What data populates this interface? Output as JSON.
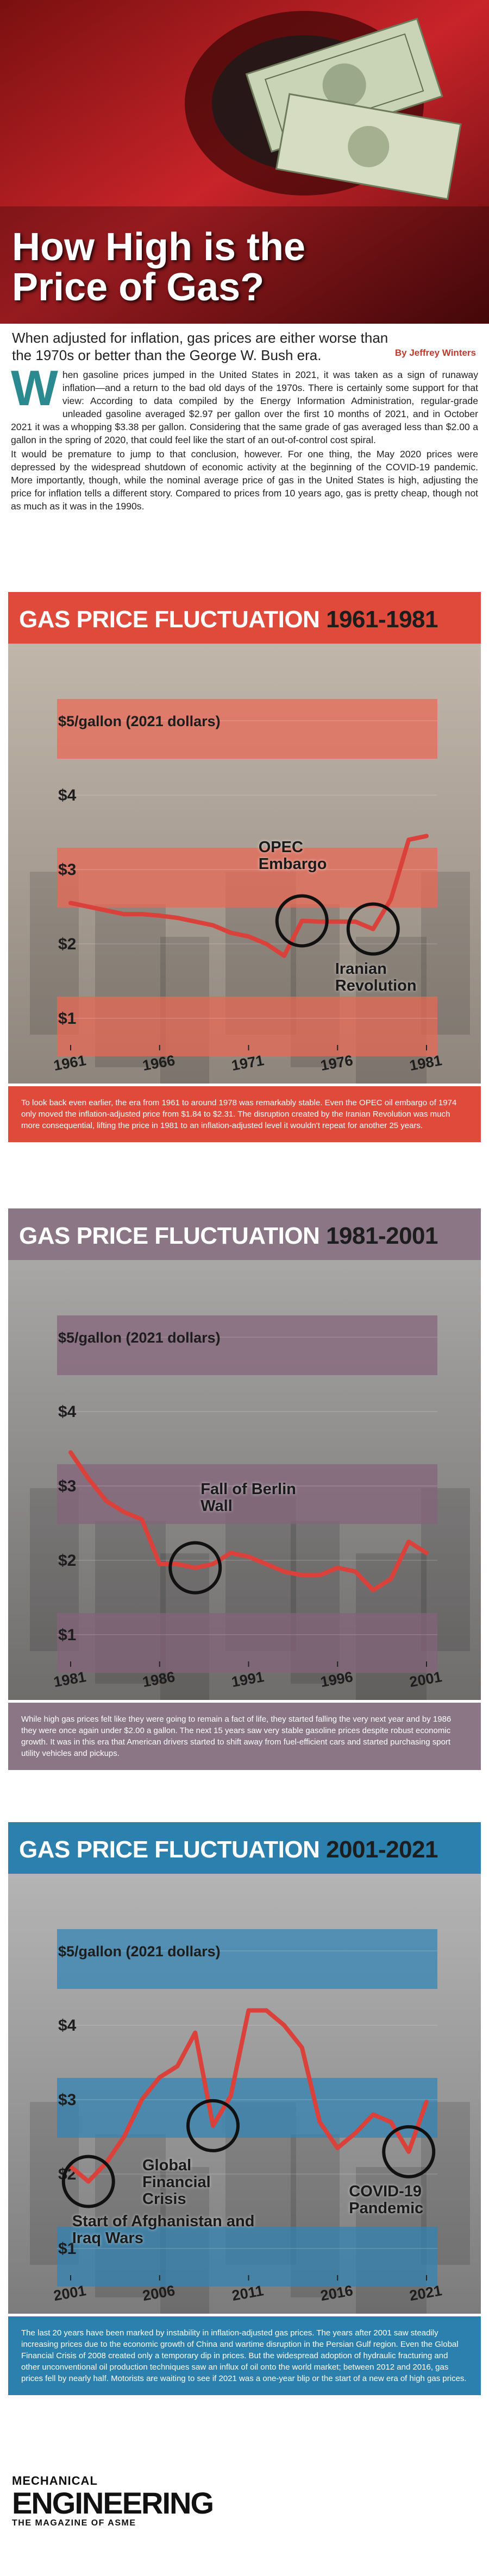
{
  "header": {
    "title": "How High is the Price of Gas?",
    "subtitle": "When adjusted for inflation, gas prices are either worse than the 1970s or better than the George W. Bush era.",
    "byline": "By Jeffrey Winters"
  },
  "body": {
    "paragraphs": [
      "When gasoline prices jumped in the United States in 2021, it was taken as a sign of runaway inflation—and a return to the bad old days of the 1970s. There is certainly some support for that view: According to data compiled by the Energy Information Administration, regular-grade unleaded gasoline averaged $2.97 per gallon over the first 10 months of 2021, and in October 2021 it was a whopping $3.38 per gallon. Considering that the same grade of gas averaged less than $2.00 a gallon in the spring of 2020, that could feel like the start of an out-of-control cost spiral.",
      "It would be premature to jump to that conclusion, however. For one thing, the May 2020 prices were depressed by the widespread shutdown of economic activity at the beginning of the COVID-19 pandemic. More importantly, though, while the nominal average price of gas in the United States is high, adjusting the price for inflation tells a different story. Compared to prices from 10 years ago, gas is pretty cheap, though not as much as it was in the 1990s."
    ]
  },
  "chart_data": [
    {
      "type": "line",
      "title": "GAS PRICE FLUCTUATION",
      "title_years": "1961-1981",
      "theme_color": "#e04a3b",
      "band_color": "rgba(236,104,84,0.72)",
      "color": "#d9413a",
      "x": [
        1961,
        1962,
        1963,
        1964,
        1965,
        1966,
        1967,
        1968,
        1969,
        1970,
        1971,
        1972,
        1973,
        1974,
        1975,
        1976,
        1977,
        1978,
        1979,
        1980,
        1981
      ],
      "values": [
        2.55,
        2.5,
        2.45,
        2.4,
        2.4,
        2.38,
        2.35,
        2.3,
        2.25,
        2.15,
        2.1,
        2.0,
        1.84,
        2.31,
        2.3,
        2.3,
        2.3,
        2.2,
        2.6,
        3.4,
        3.45
      ],
      "xlim": [
        1961,
        1981
      ],
      "xticks": [
        1961,
        1966,
        1971,
        1976,
        1981
      ],
      "ylim": [
        0.7,
        6
      ],
      "yticks": [
        {
          "value": 5,
          "label": "$5/gallon (2021 dollars)"
        },
        {
          "value": 4,
          "label": "$4"
        },
        {
          "value": 3,
          "label": "$3"
        },
        {
          "value": 2,
          "label": "$2"
        },
        {
          "value": 1,
          "label": "$1"
        }
      ],
      "annotations": [
        {
          "text": "OPEC Embargo",
          "x": 1974
        },
        {
          "text": "Iranian Revolution",
          "x": 1978
        }
      ],
      "caption": "To look back even earlier, the era from 1961 to around 1978 was remarkably stable. Even the OPEC oil embargo of 1974 only moved the inflation-adjusted price from $1.84 to $2.31. The disruption created by the Iranian Revolution was much more consequential, lifting the price in 1981 to an inflation-adjusted level it wouldn't repeat for another 25 years."
    },
    {
      "type": "line",
      "title": "GAS PRICE FLUCTUATION",
      "title_years": "1981-2001",
      "theme_color": "#8a7684",
      "band_color": "rgba(132,100,122,0.72)",
      "color": "#d9413a",
      "x": [
        1981,
        1982,
        1983,
        1984,
        1985,
        1986,
        1987,
        1988,
        1989,
        1990,
        1991,
        1992,
        1993,
        1994,
        1995,
        1996,
        1997,
        1998,
        1999,
        2000,
        2001
      ],
      "values": [
        3.45,
        3.1,
        2.8,
        2.65,
        2.55,
        1.95,
        1.95,
        1.9,
        1.95,
        2.1,
        2.05,
        1.95,
        1.85,
        1.8,
        1.8,
        1.9,
        1.85,
        1.6,
        1.75,
        2.25,
        2.1
      ],
      "xlim": [
        1981,
        2001
      ],
      "xticks": [
        1981,
        1986,
        1991,
        1996,
        2001
      ],
      "ylim": [
        0.7,
        6
      ],
      "yticks": [
        {
          "value": 5,
          "label": "$5/gallon (2021 dollars)"
        },
        {
          "value": 4,
          "label": "$4"
        },
        {
          "value": 3,
          "label": "$3"
        },
        {
          "value": 2,
          "label": "$2"
        },
        {
          "value": 1,
          "label": "$1"
        }
      ],
      "annotations": [
        {
          "text": "Fall of Berlin Wall",
          "x": 1988
        }
      ],
      "caption": "While high gas prices felt like they were going to remain a fact of life, they started falling the very next year and by 1986 they were once again under $2.00 a gallon. The next 15 years saw very stable gasoline prices despite robust economic growth. It was in this era that American drivers started to shift away from fuel-efficient cars and started purchasing sport utility vehicles and pickups."
    },
    {
      "type": "line",
      "title": "GAS PRICE FLUCTUATION",
      "title_years": "2001-2021",
      "theme_color": "#2b80ad",
      "band_color": "rgba(48,132,180,0.72)",
      "color": "#d9413a",
      "x": [
        2001,
        2002,
        2003,
        2004,
        2005,
        2006,
        2007,
        2008,
        2009,
        2010,
        2011,
        2012,
        2013,
        2014,
        2015,
        2016,
        2017,
        2018,
        2019,
        2020,
        2021
      ],
      "values": [
        2.1,
        1.9,
        2.15,
        2.5,
        3.0,
        3.3,
        3.45,
        3.9,
        2.65,
        3.05,
        4.2,
        4.2,
        4.0,
        3.7,
        2.7,
        2.35,
        2.55,
        2.8,
        2.7,
        2.3,
        2.97
      ],
      "xlim": [
        2001,
        2021
      ],
      "xticks": [
        2001,
        2006,
        2011,
        2016,
        2021
      ],
      "ylim": [
        0.7,
        6
      ],
      "yticks": [
        {
          "value": 5,
          "label": "$5/gallon (2021 dollars)"
        },
        {
          "value": 4,
          "label": "$4"
        },
        {
          "value": 3,
          "label": "$3"
        },
        {
          "value": 2,
          "label": "$2"
        },
        {
          "value": 1,
          "label": "$1"
        }
      ],
      "annotations": [
        {
          "text": "Start of Afghanistan and Iraq Wars",
          "x": 2002
        },
        {
          "text": "Global Financial Crisis",
          "x": 2009
        },
        {
          "text": "COVID-19 Pandemic",
          "x": 2020
        }
      ],
      "caption": "The last 20 years have been marked by instability in inflation-adjusted gas prices. The years after 2001 saw steadily increasing prices due to the economic growth of China and wartime disruption in the Persian Gulf region. Even the Global Financial Crisis of 2008 created only a temporary dip in prices. But the widespread adoption of hydraulic fracturing and other unconventional oil production techniques saw an influx of oil onto the world market; between 2012 and 2016, gas prices fell by nearly half. Motorists are waiting to see if 2021 was a one-year blip or the start of a new era of high gas prices."
    }
  ],
  "footer": {
    "brand_top": "MECHANICAL",
    "brand": "ENGINEERING",
    "tagline": "THE MAGAZINE OF ASME"
  }
}
